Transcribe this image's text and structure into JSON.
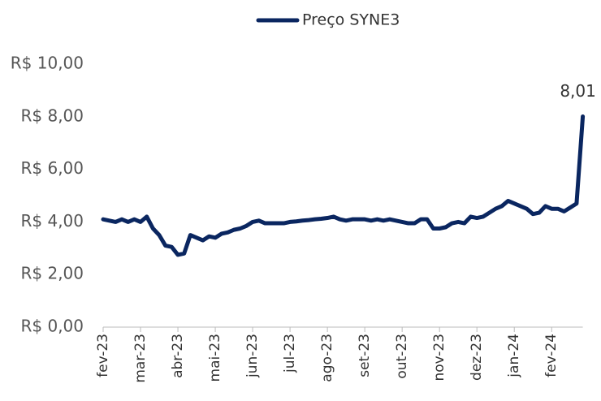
{
  "chart_data": {
    "type": "line",
    "categories": [
      "fev-23",
      null,
      null,
      null,
      null,
      null,
      "mar-23",
      null,
      null,
      null,
      null,
      null,
      "abr-23",
      null,
      null,
      null,
      null,
      null,
      "mai-23",
      null,
      null,
      null,
      null,
      null,
      "jun-23",
      null,
      null,
      null,
      null,
      null,
      "jul-23",
      null,
      null,
      null,
      null,
      null,
      "ago-23",
      null,
      null,
      null,
      null,
      null,
      "set-23",
      null,
      null,
      null,
      null,
      null,
      "out-23",
      null,
      null,
      null,
      null,
      null,
      "nov-23",
      null,
      null,
      null,
      null,
      null,
      "dez-23",
      null,
      null,
      null,
      null,
      null,
      "jan-24",
      null,
      null,
      null,
      null,
      null,
      "fev-24",
      null,
      null,
      null,
      null,
      null
    ],
    "series": [
      {
        "name": "Preço SYNE3",
        "color": "#0a2660",
        "values": [
          4.1,
          4.05,
          4.0,
          4.1,
          4.0,
          4.1,
          4.0,
          4.2,
          3.75,
          3.5,
          3.1,
          3.05,
          2.75,
          2.8,
          3.5,
          3.4,
          3.3,
          3.45,
          3.4,
          3.55,
          3.6,
          3.7,
          3.75,
          3.85,
          4.0,
          4.05,
          3.95,
          3.95,
          3.95,
          3.95,
          4.0,
          4.02,
          4.05,
          4.07,
          4.1,
          4.12,
          4.15,
          4.2,
          4.1,
          4.05,
          4.1,
          4.1,
          4.1,
          4.05,
          4.1,
          4.05,
          4.1,
          4.05,
          4.0,
          3.95,
          3.95,
          4.1,
          4.1,
          3.75,
          3.75,
          3.8,
          3.95,
          4.0,
          3.95,
          4.2,
          4.15,
          4.2,
          4.35,
          4.5,
          4.6,
          4.8,
          4.7,
          4.6,
          4.5,
          4.3,
          4.35,
          4.6,
          4.5,
          4.5,
          4.4,
          4.55,
          4.7,
          8.01
        ],
        "value_labels": [
          null,
          null,
          null,
          null,
          null,
          null,
          null,
          null,
          null,
          null,
          null,
          null,
          null,
          null,
          null,
          null,
          null,
          null,
          null,
          null,
          null,
          null,
          null,
          null,
          null,
          null,
          null,
          null,
          null,
          null,
          null,
          null,
          null,
          null,
          null,
          null,
          null,
          null,
          null,
          null,
          null,
          null,
          null,
          null,
          null,
          null,
          null,
          null,
          null,
          null,
          null,
          null,
          null,
          null,
          null,
          null,
          null,
          null,
          null,
          null,
          null,
          null,
          null,
          null,
          null,
          null,
          null,
          null,
          null,
          null,
          null,
          null,
          null,
          null,
          null,
          null,
          null,
          "8,01"
        ]
      }
    ],
    "ylim": [
      0,
      10
    ],
    "yticks": [
      {
        "value": 0,
        "label": "R$ 0,00"
      },
      {
        "value": 2,
        "label": "R$ 2,00"
      },
      {
        "value": 4,
        "label": "R$ 4,00"
      },
      {
        "value": 6,
        "label": "R$ 6,00"
      },
      {
        "value": 8,
        "label": "R$ 8,00"
      },
      {
        "value": 10,
        "label": "R$ 10,00"
      }
    ],
    "legend": "top"
  }
}
